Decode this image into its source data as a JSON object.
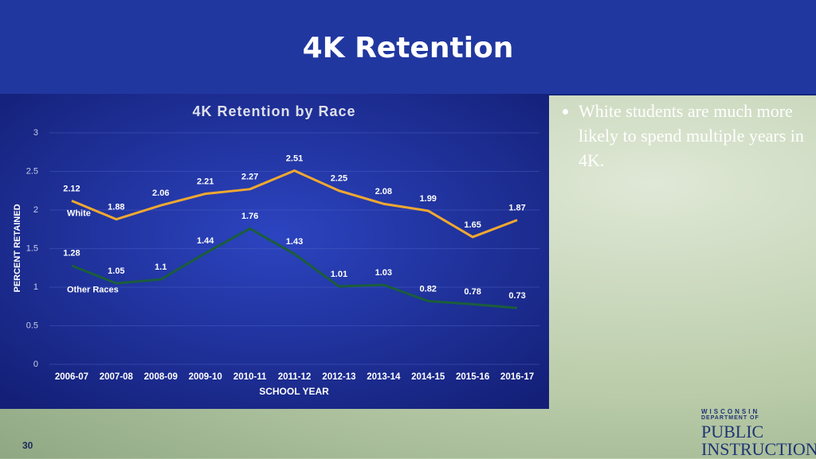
{
  "slide": {
    "title": "4K Retention",
    "bullets": [
      "White students are much more likely to spend multiple years in 4K."
    ],
    "page_number": 30,
    "logo": [
      "WISCONSIN",
      "DEPARTMENT OF",
      "PUBLIC",
      "INSTRUCTION"
    ]
  },
  "chart_data": {
    "type": "line",
    "title": "4K Retention by Race",
    "x_label": "SCHOOL YEAR",
    "y_label": "PERCENT RETAINED",
    "categories": [
      "2006-07",
      "2007-08",
      "2008-09",
      "2009-10",
      "2010-11",
      "2011-12",
      "2012-13",
      "2013-14",
      "2014-15",
      "2015-16",
      "2016-17"
    ],
    "series": [
      {
        "name": "White",
        "color": "#f0a830",
        "values": [
          2.12,
          1.88,
          2.06,
          2.21,
          2.27,
          2.51,
          2.25,
          2.08,
          1.99,
          1.65,
          1.87
        ]
      },
      {
        "name": "Other Races",
        "color": "#1b5e3b",
        "values": [
          1.28,
          1.05,
          1.1,
          1.44,
          1.76,
          1.43,
          1.01,
          1.03,
          0.82,
          0.78,
          0.73
        ]
      }
    ],
    "ylim": [
      0,
      3
    ],
    "yticks": [
      0,
      0.5,
      1,
      1.5,
      2,
      2.5,
      3
    ],
    "grid": true
  }
}
